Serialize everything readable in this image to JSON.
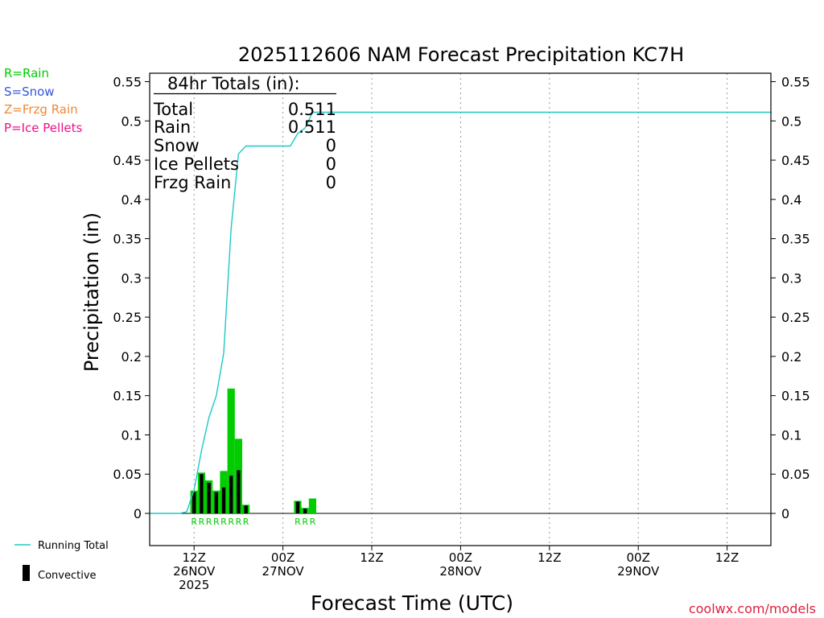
{
  "chart_data": {
    "type": "bar",
    "title": "2025112606 NAM Forecast Precipitation KC7H",
    "ylabel": "Precipitation (in)",
    "xlabel": "Forecast Time (UTC)",
    "ylim": [
      -0.04,
      0.56
    ],
    "xlim": [
      0,
      84
    ],
    "y_ticks": [
      0,
      0.05,
      0.1,
      0.15,
      0.2,
      0.25,
      0.3,
      0.35,
      0.4,
      0.45,
      0.5,
      0.55
    ],
    "y_tick_labels": [
      "0",
      "0.05",
      "0.1",
      "0.15",
      "0.2",
      "0.25",
      "0.3",
      "0.35",
      "0.4",
      "0.45",
      "0.5",
      "0.55"
    ],
    "x_ticks": [
      {
        "hour": 6,
        "lines": [
          "12Z",
          "26NOV",
          "2025"
        ]
      },
      {
        "hour": 18,
        "lines": [
          "00Z",
          "27NOV"
        ]
      },
      {
        "hour": 30,
        "lines": [
          "12Z"
        ]
      },
      {
        "hour": 42,
        "lines": [
          "00Z",
          "28NOV"
        ]
      },
      {
        "hour": 54,
        "lines": [
          "12Z"
        ]
      },
      {
        "hour": 66,
        "lines": [
          "00Z",
          "29NOV"
        ]
      },
      {
        "hour": 78,
        "lines": [
          "12Z"
        ]
      }
    ],
    "bar_width_hours": 1,
    "series": [
      {
        "name": "Rain",
        "color": "#00cc00",
        "x": [
          6,
          7,
          8,
          9,
          10,
          11,
          12,
          13,
          20,
          21,
          22
        ],
        "values": [
          0.029,
          0.052,
          0.042,
          0.029,
          0.054,
          0.159,
          0.095,
          0.011,
          0.016,
          0.007,
          0.019
        ]
      },
      {
        "name": "Convective",
        "color": "#000000",
        "x": [
          6,
          7,
          8,
          9,
          10,
          11,
          12,
          13,
          20,
          21,
          22
        ],
        "values": [
          0.027,
          0.05,
          0.039,
          0.027,
          0.033,
          0.048,
          0.055,
          0.01,
          0.015,
          0.006,
          0.0
        ]
      },
      {
        "name": "Running Total",
        "type": "line",
        "color": "#1ec8c8",
        "x": [
          0,
          4,
          5,
          6,
          7,
          8,
          9,
          10,
          11,
          12,
          13,
          14,
          15,
          16,
          17,
          18,
          19,
          20,
          21,
          22,
          23,
          84
        ],
        "values": [
          0,
          0,
          0.002,
          0.03,
          0.08,
          0.122,
          0.15,
          0.204,
          0.363,
          0.458,
          0.468,
          0.468,
          0.468,
          0.468,
          0.468,
          0.468,
          0.468,
          0.484,
          0.491,
          0.511,
          0.511,
          0.511
        ]
      }
    ],
    "precip_type_codes": [
      {
        "x": 6,
        "code": "R"
      },
      {
        "x": 7,
        "code": "R"
      },
      {
        "x": 8,
        "code": "R"
      },
      {
        "x": 9,
        "code": "R"
      },
      {
        "x": 10,
        "code": "R"
      },
      {
        "x": 11,
        "code": "R"
      },
      {
        "x": 12,
        "code": "R"
      },
      {
        "x": 13,
        "code": "R"
      },
      {
        "x": 20,
        "code": "R"
      },
      {
        "x": 21,
        "code": "R"
      },
      {
        "x": 22,
        "code": "R"
      }
    ],
    "totals": {
      "header": "84hr Totals (in):",
      "rows": [
        {
          "label": "Total",
          "value": "0.511"
        },
        {
          "label": "Rain",
          "value": "0.511"
        },
        {
          "label": "Snow",
          "value": "0"
        },
        {
          "label": "Ice Pellets",
          "value": "0"
        },
        {
          "label": "Frzg Rain",
          "value": "0"
        }
      ]
    },
    "type_legend": [
      {
        "text": "R=Rain",
        "color": "#00cc00"
      },
      {
        "text": "S=Snow",
        "color": "#3355dd"
      },
      {
        "text": "Z=Frzg Rain",
        "color": "#ee8833"
      },
      {
        "text": "P=Ice Pellets",
        "color": "#ee1188"
      }
    ],
    "bottom_legend": {
      "running_total": "Running Total",
      "convective": "Convective"
    },
    "credit": "coolwx.com/models"
  }
}
